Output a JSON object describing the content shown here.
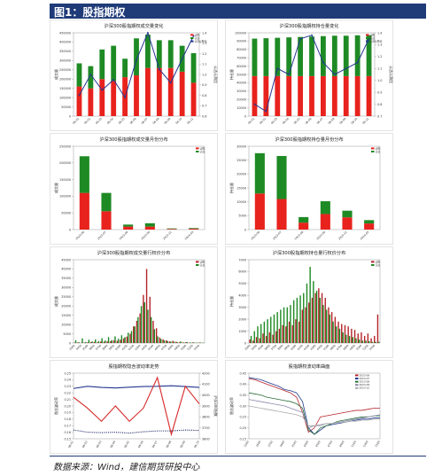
{
  "figure_title": "图1：股指期权",
  "source_note": "数据来源：Wind，建信期货研投中心",
  "chart_data": [
    {
      "id": "p1",
      "type": "bar",
      "title": "沪深300股指期权成交量变化",
      "ylabel": "成交量",
      "y2label": "认沽认购比",
      "ylim": [
        0,
        450000
      ],
      "yticks": [
        "0",
        "50000",
        "100000",
        "150000",
        "200000",
        "250000",
        "300000",
        "350000",
        "400000",
        "450000"
      ],
      "y2lim": [
        0.6,
        1.4
      ],
      "y2ticks": [
        "0.6",
        "0.7",
        "0.8",
        "0.9",
        "1.0",
        "1.1",
        "1.2",
        "1.3",
        "1.4"
      ],
      "categories": [
        "06-01",
        "06-02",
        "06-03",
        "06-04",
        "06-05",
        "06-06",
        "06-07",
        "06-08",
        "06-09",
        "06-10",
        "06-11"
      ],
      "series": [
        {
          "name": "认购",
          "values": [
            160000,
            150000,
            200000,
            190000,
            210000,
            220000,
            260000,
            260000,
            260000,
            240000,
            180000
          ],
          "color": "#e8221d"
        },
        {
          "name": "认沽",
          "values": [
            125000,
            120000,
            160000,
            190000,
            100000,
            200000,
            180000,
            150000,
            150000,
            140000,
            160000
          ],
          "color": "#1e8a24"
        }
      ],
      "line": {
        "values": [
          0.8,
          1.0,
          0.85,
          0.95,
          0.78,
          1.14,
          1.4,
          1.05,
          0.92,
          1.15,
          1.37
        ],
        "color": "#23368f"
      },
      "legend": [
        "认购",
        "认沽",
        "认沽认购比"
      ]
    },
    {
      "id": "p2",
      "type": "bar",
      "title": "沪深300股指期权持仓量变化",
      "ylabel": "持仓量",
      "y2label": "认沽认购比",
      "ylim": [
        0,
        100000
      ],
      "yticks": [
        "0",
        "10000",
        "20000",
        "30000",
        "40000",
        "50000",
        "60000",
        "70000",
        "80000",
        "90000",
        "100000"
      ],
      "y2lim": [
        0.7,
        1.4
      ],
      "y2ticks": [
        "0.7",
        "0.8",
        "0.9",
        "1.0",
        "1.1",
        "1.2",
        "1.3",
        "1.4"
      ],
      "categories": [
        "06-01",
        "06-02",
        "06-03",
        "06-04",
        "06-05",
        "06-06",
        "06-07",
        "06-08",
        "06-09",
        "06-10",
        "06-11"
      ],
      "series": [
        {
          "name": "认购",
          "values": [
            48000,
            48000,
            48000,
            48000,
            48000,
            48000,
            48000,
            48000,
            48000,
            48000,
            48000
          ],
          "color": "#e8221d"
        },
        {
          "name": "认沽",
          "values": [
            45000,
            45500,
            46000,
            46500,
            47000,
            47500,
            48000,
            48500,
            48500,
            49000,
            49000
          ],
          "color": "#1e8a24"
        }
      ],
      "line": {
        "values": [
          0.8,
          0.74,
          1.1,
          1.05,
          1.35,
          1.38,
          1.15,
          1.05,
          1.1,
          1.15,
          1.35
        ],
        "color": "#23368f"
      },
      "legend": [
        "认购",
        "认沽",
        "认沽认购比"
      ]
    },
    {
      "id": "p3",
      "type": "bar",
      "title": "沪深300股指期权成交量月份分布",
      "ylabel": "成交量",
      "ylim": [
        0,
        250000
      ],
      "yticks": [
        "0",
        "50000",
        "100000",
        "150000",
        "200000",
        "250000"
      ],
      "categories": [
        "2023-06",
        "2023-07",
        "2023-08",
        "2023-09",
        "2023-12",
        "2024-03"
      ],
      "series": [
        {
          "name": "认购",
          "values": [
            110000,
            55000,
            9000,
            9000,
            2000,
            2500
          ],
          "color": "#e8221d"
        },
        {
          "name": "认沽",
          "values": [
            110000,
            55000,
            6000,
            10000,
            1500,
            2000
          ],
          "color": "#1e8a24"
        }
      ],
      "legend": [
        "认购",
        "认沽"
      ]
    },
    {
      "id": "p4",
      "type": "bar",
      "title": "沪深300股指期权持仓量月份分布",
      "ylabel": "持仓量",
      "ylim": [
        0,
        30000
      ],
      "yticks": [
        "0",
        "5000",
        "10000",
        "15000",
        "20000",
        "25000",
        "30000"
      ],
      "categories": [
        "2023-06",
        "2023-07",
        "2023-08",
        "2023-09",
        "2023-12",
        "2024-03"
      ],
      "series": [
        {
          "name": "认购",
          "values": [
            13000,
            11000,
            2500,
            5600,
            4400,
            2200
          ],
          "color": "#e8221d"
        },
        {
          "name": "认沽",
          "values": [
            14500,
            15500,
            2000,
            4600,
            2400,
            1200
          ],
          "color": "#1e8a24"
        }
      ],
      "legend": [
        "认购",
        "认沽"
      ]
    },
    {
      "id": "p5",
      "type": "bar",
      "title": "沪深300股指期权成交量行权价分布",
      "ylabel": "成交量",
      "ylim": [
        0,
        45000
      ],
      "yticks": [
        "0",
        "5000",
        "10000",
        "15000",
        "20000",
        "25000",
        "30000",
        "35000",
        "40000",
        "45000"
      ],
      "categories": [
        "3300",
        "3350",
        "3400",
        "3450",
        "3500",
        "3550",
        "3600",
        "3650",
        "3700",
        "3750",
        "3800",
        "3850",
        "3900",
        "3950",
        "4000",
        "4050",
        "4100",
        "4150",
        "4200",
        "4250",
        "4300",
        "4350",
        "4400",
        "4450",
        "4500",
        "4550",
        "4600",
        "4650",
        "4700",
        "4750",
        "4800",
        "4850",
        "4900",
        "4950",
        "5000",
        "5100",
        "5200",
        "5300",
        "5400",
        "5500"
      ],
      "series": [
        {
          "name": "认购",
          "values": [
            200,
            300,
            100,
            250,
            400,
            500,
            600,
            400,
            800,
            700,
            900,
            1000,
            1500,
            1200,
            1800,
            2500,
            3500,
            5000,
            9000,
            12000,
            16000,
            26000,
            40000,
            25000,
            12000,
            8000,
            3000,
            2000,
            1500,
            900,
            1200,
            700,
            400,
            300,
            500,
            200,
            300,
            100,
            200,
            100
          ],
          "color": "#b5242a"
        },
        {
          "name": "认沽",
          "values": [
            1500,
            400,
            2500,
            600,
            1800,
            900,
            2000,
            1100,
            2600,
            1400,
            3200,
            1600,
            3600,
            2300,
            4200,
            3200,
            5600,
            6500,
            9000,
            14000,
            20000,
            22000,
            18000,
            14000,
            7500,
            3600,
            2200,
            1500,
            1100,
            800,
            700,
            400,
            900,
            300,
            500,
            300,
            400,
            200,
            300,
            200
          ],
          "color": "#1e8a24"
        }
      ],
      "legend": [
        "认购",
        "认沽"
      ]
    },
    {
      "id": "p6",
      "type": "bar",
      "title": "沪深300股指期权持仓量行权价分布",
      "ylabel": "持仓量",
      "ylim": [
        0,
        7000
      ],
      "yticks": [
        "0",
        "1000",
        "2000",
        "3000",
        "4000",
        "5000",
        "6000",
        "7000"
      ],
      "categories": [
        "3300",
        "3350",
        "3400",
        "3450",
        "3500",
        "3550",
        "3600",
        "3650",
        "3700",
        "3750",
        "3800",
        "3850",
        "3900",
        "3950",
        "4000",
        "4050",
        "4100",
        "4150",
        "4200",
        "4250",
        "4300",
        "4350",
        "4400",
        "4450",
        "4500",
        "4550",
        "4600",
        "4650",
        "4700",
        "4750",
        "4800",
        "4850",
        "4900",
        "4950",
        "5000",
        "5100",
        "5200",
        "5300",
        "5400",
        "5500"
      ],
      "series": [
        {
          "name": "认购",
          "values": [
            300,
            200,
            500,
            400,
            800,
            600,
            900,
            700,
            1000,
            1200,
            1500,
            1400,
            1800,
            1500,
            2000,
            1800,
            2800,
            3000,
            3400,
            3800,
            4200,
            4600,
            4200,
            3800,
            3000,
            2600,
            2200,
            1800,
            1600,
            1500,
            1400,
            1200,
            1100,
            800,
            900,
            600,
            800,
            400,
            600,
            2400
          ],
          "color": "#b5242a"
        },
        {
          "name": "认沽",
          "values": [
            600,
            1000,
            1400,
            1600,
            1800,
            2000,
            2200,
            2400,
            2600,
            2800,
            3000,
            3000,
            3200,
            3600,
            3800,
            4000,
            4200,
            5000,
            6400,
            5200,
            4400,
            3800,
            3200,
            2800,
            2400,
            1800,
            1400,
            1200,
            900,
            700,
            600,
            500,
            400,
            300,
            200,
            200,
            150,
            100,
            100,
            100
          ],
          "color": "#1e8a24"
        }
      ],
      "legend": [
        "认购",
        "认沽"
      ]
    },
    {
      "id": "p7",
      "type": "line",
      "title": "股指期权隐含波动率走势",
      "ylabel": "隐含波动率",
      "y2label": "沪深300指数",
      "ylim": [
        0.15,
        0.3
      ],
      "yticks": [
        "0.15",
        "0.16",
        "0.17",
        "0.18",
        "0.19",
        "0.20",
        "0.21",
        "0.22",
        "0.23",
        "0.24",
        "0.25"
      ],
      "y2lim": [
        3600,
        4200
      ],
      "y2ticks": [
        "3600",
        "3700",
        "3800",
        "3900",
        "4000",
        "4100",
        "4200"
      ],
      "categories": [
        "06-01",
        "06-02",
        "06-03",
        "06-04",
        "06-05",
        "06-06",
        "06-07",
        "06-08",
        "06-09",
        "06-10"
      ],
      "series": [
        {
          "name": "沪深300指数",
          "values": [
            4060,
            4080,
            4070,
            4065,
            4072,
            4078,
            4080,
            4085,
            4078,
            4070
          ],
          "color": "#23368f",
          "style": "solid"
        },
        {
          "name": "隐含波动率",
          "values": [
            0.245,
            0.22,
            0.19,
            0.225,
            0.19,
            0.22,
            0.29,
            0.16,
            0.27,
            0.23
          ],
          "color": "#d62a2a",
          "style": "solid"
        },
        {
          "name": "历史波动率",
          "values": [
            0.17,
            0.165,
            0.164,
            0.165,
            0.163,
            0.166,
            0.168,
            0.168,
            0.17,
            0.169
          ],
          "color": "#10155a",
          "style": "dotted"
        }
      ],
      "legend": []
    },
    {
      "id": "p8",
      "type": "line",
      "title": "股指期权波动率曲面",
      "ylabel": "隐含波动率",
      "ylim": [
        0.15,
        0.45
      ],
      "yticks": [
        "0.15",
        "0.20",
        "0.25",
        "0.30",
        "0.35",
        "0.40",
        "0.45"
      ],
      "categories": [
        "3300",
        "3400",
        "3500",
        "3600",
        "3700",
        "3800",
        "3900",
        "4000",
        "4100",
        "4200",
        "4300",
        "4400",
        "4500",
        "4600",
        "4700",
        "4800",
        "4900",
        "5000",
        "5100",
        "5200",
        "5300",
        "5400",
        "5500"
      ],
      "series": [
        {
          "name": "2023-06",
          "values": [
            0.425,
            0.42,
            0.41,
            0.4,
            0.39,
            0.38,
            0.37,
            0.36,
            0.34,
            0.27,
            0.18,
            0.2,
            0.25,
            0.255,
            0.26,
            0.265,
            0.27,
            0.275,
            0.28,
            0.28,
            0.285,
            0.29,
            0.29
          ],
          "color": "#b5242a"
        },
        {
          "name": "2023-07",
          "values": [
            0.43,
            0.425,
            0.42,
            0.41,
            0.4,
            0.39,
            0.375,
            0.37,
            0.36,
            0.32,
            0.2,
            0.17,
            0.19,
            0.21,
            0.215,
            0.22,
            0.225,
            0.23,
            0.235,
            0.24,
            0.24,
            0.245,
            0.245
          ],
          "color": "#1f3b8c"
        },
        {
          "name": "2023-08",
          "values": [
            0.36,
            0.355,
            0.35,
            0.34,
            0.335,
            0.33,
            0.325,
            0.32,
            0.31,
            0.29,
            0.19,
            0.17,
            0.2,
            0.21,
            0.22,
            0.23,
            0.235,
            0.24,
            0.245,
            0.25,
            0.25,
            0.255,
            0.255
          ],
          "color": "#2a6e3a"
        },
        {
          "name": "2023-09",
          "values": [
            0.33,
            0.325,
            0.32,
            0.315,
            0.31,
            0.305,
            0.3,
            0.29,
            0.28,
            0.27,
            0.2,
            0.21,
            0.21,
            0.22,
            0.22,
            0.225,
            0.23,
            0.235,
            0.24,
            0.245,
            0.25,
            0.255,
            0.26
          ],
          "color": "#8888aa"
        },
        {
          "name": "2023-12",
          "values": [
            0.3,
            0.295,
            0.29,
            0.285,
            0.28,
            0.275,
            0.27,
            0.265,
            0.26,
            0.25,
            0.21,
            0.21,
            0.215,
            0.22,
            0.22,
            0.225,
            0.225,
            0.23,
            0.23,
            0.235,
            0.235,
            0.24,
            0.24
          ],
          "color": "#aaaaaa"
        }
      ],
      "legend": [
        "2023-06",
        "2023-07",
        "2023-08",
        "2023-09",
        "2023-12"
      ]
    }
  ]
}
